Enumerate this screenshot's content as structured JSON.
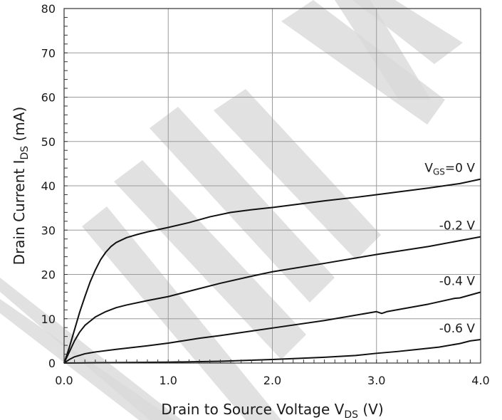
{
  "chart_data": {
    "type": "line",
    "title": "",
    "xlabel": "Drain to Source Voltage V",
    "xlabel_sub": "DS",
    "xlabel_suffix": " (V)",
    "ylabel": "Drain Current I",
    "ylabel_sub": "DS",
    "ylabel_suffix": " (mA)",
    "xlim": [
      0,
      4
    ],
    "ylim": [
      0,
      80
    ],
    "x_ticks": [
      0,
      1,
      2,
      3,
      4
    ],
    "x_tick_labels": [
      "0.0",
      "1.0",
      "2.0",
      "3.0",
      "4.0"
    ],
    "y_ticks": [
      0,
      10,
      20,
      30,
      40,
      50,
      60,
      70,
      80
    ],
    "y_tick_labels": [
      "0",
      "10",
      "20",
      "30",
      "40",
      "50",
      "60",
      "70",
      "80"
    ],
    "grid": true,
    "watermark": "PRELIMINARY",
    "series": [
      {
        "label_prefix": "V",
        "label_sub": "GS",
        "label_suffix": "=0 V",
        "x": [
          0,
          0.05,
          0.1,
          0.15,
          0.2,
          0.25,
          0.3,
          0.35,
          0.4,
          0.45,
          0.5,
          0.6,
          0.7,
          0.8,
          1.0,
          1.2,
          1.4,
          1.6,
          1.8,
          2.0,
          2.2,
          2.5,
          2.8,
          3.0,
          3.2,
          3.5,
          3.8,
          4.0
        ],
        "values": [
          0,
          3.5,
          7.5,
          11.5,
          15.0,
          18.3,
          21.0,
          23.3,
          25.0,
          26.3,
          27.2,
          28.3,
          29.0,
          29.6,
          30.6,
          31.7,
          33.0,
          34.0,
          34.6,
          35.1,
          35.7,
          36.6,
          37.4,
          38.0,
          38.6,
          39.5,
          40.5,
          41.5
        ]
      },
      {
        "label": "-0.2 V",
        "x": [
          0,
          0.05,
          0.1,
          0.15,
          0.2,
          0.3,
          0.4,
          0.5,
          0.6,
          0.8,
          1.0,
          1.2,
          1.5,
          1.8,
          2.0,
          2.5,
          3.0,
          3.5,
          4.0
        ],
        "values": [
          0,
          2.5,
          5.0,
          7.0,
          8.5,
          10.4,
          11.6,
          12.5,
          13.1,
          14.1,
          15.0,
          16.2,
          18.0,
          19.6,
          20.6,
          22.5,
          24.5,
          26.3,
          28.5
        ]
      },
      {
        "label": "-0.4 V",
        "x": [
          0,
          0.05,
          0.1,
          0.2,
          0.3,
          0.5,
          0.8,
          1.0,
          1.3,
          1.5,
          2.0,
          2.5,
          3.0,
          3.05,
          3.1,
          3.5,
          3.75,
          3.8,
          4.0
        ],
        "values": [
          0,
          0.8,
          1.4,
          2.1,
          2.5,
          3.1,
          3.9,
          4.5,
          5.6,
          6.2,
          7.9,
          9.6,
          11.6,
          11.2,
          11.6,
          13.3,
          14.6,
          14.7,
          16.0
        ]
      },
      {
        "label": "-0.6 V",
        "x": [
          0,
          0.2,
          0.5,
          1.0,
          1.5,
          2.0,
          2.5,
          2.8,
          3.0,
          3.2,
          3.4,
          3.6,
          3.8,
          3.9,
          4.0
        ],
        "values": [
          0,
          0.05,
          0.1,
          0.2,
          0.4,
          0.8,
          1.3,
          1.7,
          2.2,
          2.6,
          3.1,
          3.6,
          4.4,
          5.0,
          5.3
        ]
      }
    ]
  }
}
